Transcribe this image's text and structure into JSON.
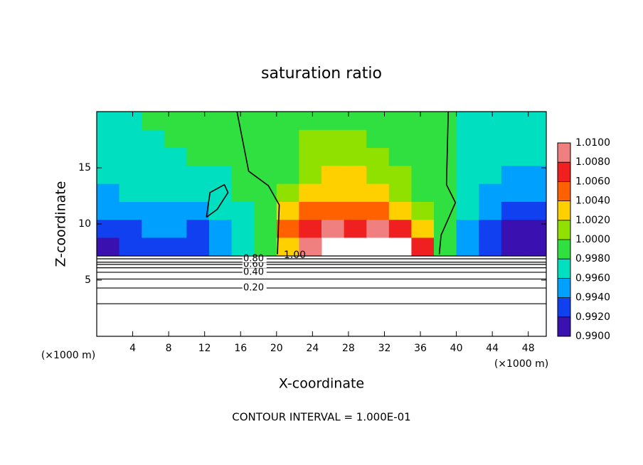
{
  "chart_data": {
    "type": "heatmap",
    "title": "saturation ratio",
    "xlabel": "X-coordinate",
    "ylabel": "Z-coordinate",
    "x_unit": "(×1000 m)",
    "note": "CONTOUR INTERVAL = 1.000E-01",
    "xlim": [
      0,
      50
    ],
    "ylim": [
      0,
      20
    ],
    "xticks": [
      4,
      8,
      12,
      16,
      20,
      24,
      28,
      32,
      36,
      40,
      44,
      48
    ],
    "yticks": [
      5,
      10,
      15
    ],
    "xbins": [
      0,
      2.5,
      5,
      7.5,
      10,
      12.5,
      15,
      17.5,
      20,
      22.5,
      25,
      27.5,
      30,
      32.5,
      35,
      37.5,
      40,
      42.5,
      45,
      47.5,
      50
    ],
    "ybins": [
      7.2,
      8.8,
      10.4,
      12,
      13.6,
      15.2,
      16.8,
      18.4,
      20
    ],
    "z": [
      [
        0.992,
        0.993,
        0.994,
        0.994,
        0.993,
        0.995,
        0.997,
        0.999,
        1.004,
        1.009,
        null,
        null,
        null,
        null,
        1.008,
        1.0,
        0.996,
        0.994,
        0.992,
        0.991
      ],
      [
        0.993,
        0.994,
        0.995,
        0.995,
        0.994,
        0.996,
        0.997,
        0.999,
        1.005,
        1.008,
        1.009,
        1.008,
        1.009,
        1.007,
        1.003,
        1.0,
        0.996,
        0.994,
        0.992,
        0.991
      ],
      [
        0.995,
        0.996,
        0.996,
        0.996,
        0.996,
        0.997,
        0.998,
        0.999,
        1.003,
        1.006,
        1.006,
        1.005,
        1.005,
        1.003,
        1.001,
        0.999,
        0.997,
        0.995,
        0.993,
        0.993
      ],
      [
        0.996,
        0.997,
        0.997,
        0.997,
        0.997,
        0.998,
        0.999,
        0.999,
        1.001,
        1.003,
        1.004,
        1.004,
        1.003,
        1.002,
        1.0,
        0.999,
        0.997,
        0.996,
        0.995,
        0.995
      ],
      [
        0.997,
        0.997,
        0.998,
        0.998,
        0.998,
        0.998,
        0.999,
        0.999,
        1.0,
        1.002,
        1.003,
        1.003,
        1.002,
        1.001,
        1.0,
        0.999,
        0.998,
        0.997,
        0.996,
        0.996
      ],
      [
        0.998,
        0.998,
        0.998,
        0.998,
        0.999,
        0.999,
        0.999,
        0.999,
        1.0,
        1.001,
        1.002,
        1.002,
        1.001,
        1.0,
        0.999,
        0.999,
        0.998,
        0.998,
        0.997,
        0.997
      ],
      [
        0.998,
        0.998,
        0.998,
        0.999,
        0.999,
        0.999,
        0.999,
        1.0,
        1.0,
        1.001,
        1.001,
        1.001,
        1.0,
        1.0,
        0.999,
        0.999,
        0.998,
        0.998,
        0.998,
        0.998
      ],
      [
        0.998,
        0.998,
        0.999,
        0.999,
        0.999,
        0.999,
        0.999,
        0.999,
        1.0,
        1.0,
        1.0,
        1.0,
        1.0,
        0.999,
        0.999,
        0.999,
        0.998,
        0.998,
        0.998,
        0.998
      ]
    ],
    "colorbar": {
      "ticks": [
        {
          "value": 0.99,
          "label": "0.9900"
        },
        {
          "value": 0.992,
          "label": "0.9920"
        },
        {
          "value": 0.994,
          "label": "0.9940"
        },
        {
          "value": 0.996,
          "label": "0.9960"
        },
        {
          "value": 0.998,
          "label": "0.9980"
        },
        {
          "value": 1.0,
          "label": "1.0000"
        },
        {
          "value": 1.002,
          "label": "1.0020"
        },
        {
          "value": 1.004,
          "label": "1.0040"
        },
        {
          "value": 1.006,
          "label": "1.0060"
        },
        {
          "value": 1.008,
          "label": "1.0080"
        },
        {
          "value": 1.01,
          "label": "1.0100"
        }
      ],
      "colors": [
        "#3a10b0",
        "#1040f0",
        "#00a0ff",
        "#00e0c0",
        "#30e040",
        "#90e000",
        "#ffd000",
        "#ff6000",
        "#f02020",
        "#f08080"
      ]
    },
    "contours": {
      "levels": [
        0.1,
        0.2,
        0.3,
        0.4,
        0.5,
        0.6,
        0.7,
        0.8,
        0.9
      ],
      "value_labels": [
        null,
        "0.20",
        null,
        "0.40",
        null,
        "0.60",
        null,
        "0.80",
        null
      ],
      "z": [
        2.9,
        4.3,
        5.1,
        5.7,
        6.1,
        6.4,
        6.6,
        6.9,
        7.15
      ]
    },
    "unity_contour": {
      "level": 1.0,
      "label": "1.00",
      "pieces": [
        {
          "x": [
            15.6,
            16.9,
            19.1,
            20.3,
            20.1
          ],
          "z": [
            20,
            14.7,
            13.4,
            11.7,
            7.3
          ]
        },
        {
          "x": [
            39.1,
            38.9,
            39.9,
            38.3,
            38.1
          ],
          "z": [
            20,
            13.5,
            11.9,
            9.0,
            7.3
          ]
        },
        {
          "x": [
            12.2,
            12.6,
            14.2,
            14.6,
            13.4,
            12.2
          ],
          "z": [
            10.6,
            12.8,
            13.5,
            12.8,
            11.3,
            10.6
          ]
        }
      ]
    }
  }
}
